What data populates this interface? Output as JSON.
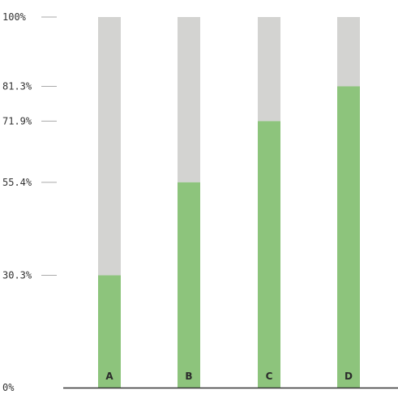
{
  "chart_data": {
    "type": "bar",
    "stacked_to_100": true,
    "categories": [
      "A",
      "B",
      "C",
      "D"
    ],
    "values": [
      30.3,
      55.4,
      71.9,
      81.3
    ],
    "ylim": [
      0,
      100
    ],
    "y_ticks": [
      {
        "value": 0,
        "label": "0%"
      },
      {
        "value": 30.3,
        "label": "30.3%"
      },
      {
        "value": 55.4,
        "label": "55.4%"
      },
      {
        "value": 71.9,
        "label": "71.9%"
      },
      {
        "value": 81.3,
        "label": "81.3%"
      },
      {
        "value": 100,
        "label": "100%"
      }
    ],
    "grid": false,
    "colors": {
      "value": "#8dc47c",
      "remainder": "#d3d3d1",
      "axis": "#333333",
      "tick": "#aaaaaa"
    }
  }
}
